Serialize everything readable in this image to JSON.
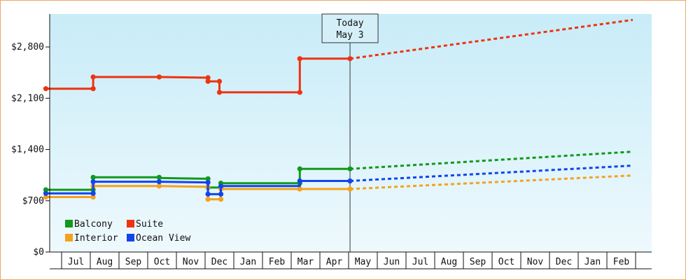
{
  "chart_data": {
    "type": "line",
    "ylim": [
      0,
      3250
    ],
    "y_ticks": [
      {
        "value": 0,
        "label": "$0"
      },
      {
        "value": 700,
        "label": "$700"
      },
      {
        "value": 1400,
        "label": "$1,400"
      },
      {
        "value": 2100,
        "label": "$2,100"
      },
      {
        "value": 2800,
        "label": "$2,800"
      }
    ],
    "x_month_labels": [
      "Jul",
      "Aug",
      "Sep",
      "Oct",
      "Nov",
      "Dec",
      "Jan",
      "Feb",
      "Mar",
      "Apr",
      "May",
      "Jun",
      "Jul",
      "Aug",
      "Sep",
      "Oct",
      "Nov",
      "Dec",
      "Jan",
      "Feb"
    ],
    "today": {
      "line1": "Today",
      "line2": "May 3",
      "month_index": 10.05
    },
    "legend": {
      "placement": "bottom-left",
      "columns": 2
    },
    "grid": false,
    "series": [
      {
        "name": "Balcony",
        "color": "#11991a",
        "history": [
          [
            -0.55,
            850
          ],
          [
            1.1,
            850
          ],
          [
            1.1,
            1020
          ],
          [
            3.4,
            1020
          ],
          [
            3.4,
            1010
          ],
          [
            5.1,
            1000
          ],
          [
            5.1,
            880
          ],
          [
            5.55,
            880
          ],
          [
            5.55,
            940
          ],
          [
            8.3,
            940
          ],
          [
            8.3,
            1135
          ],
          [
            10.05,
            1135
          ]
        ],
        "markers": [
          [
            -0.55,
            850
          ],
          [
            1.1,
            850
          ],
          [
            1.1,
            1020
          ],
          [
            3.4,
            1020
          ],
          [
            5.1,
            1000
          ],
          [
            5.1,
            880
          ],
          [
            5.55,
            880
          ],
          [
            5.55,
            940
          ],
          [
            8.3,
            940
          ],
          [
            8.3,
            1135
          ],
          [
            10.05,
            1135
          ]
        ],
        "forecast": [
          [
            10.05,
            1135
          ],
          [
            19.9,
            1370
          ]
        ]
      },
      {
        "name": "Suite",
        "color": "#ee3311",
        "history": [
          [
            -0.55,
            2230
          ],
          [
            1.1,
            2230
          ],
          [
            1.1,
            2390
          ],
          [
            3.4,
            2390
          ],
          [
            5.1,
            2380
          ],
          [
            5.1,
            2330
          ],
          [
            5.5,
            2330
          ],
          [
            5.5,
            2180
          ],
          [
            8.3,
            2180
          ],
          [
            8.3,
            2640
          ],
          [
            10.05,
            2640
          ]
        ],
        "markers": [
          [
            -0.55,
            2230
          ],
          [
            1.1,
            2230
          ],
          [
            1.1,
            2390
          ],
          [
            3.4,
            2390
          ],
          [
            5.1,
            2380
          ],
          [
            5.1,
            2330
          ],
          [
            5.5,
            2330
          ],
          [
            5.5,
            2180
          ],
          [
            8.3,
            2180
          ],
          [
            8.3,
            2640
          ],
          [
            10.05,
            2640
          ]
        ],
        "forecast": [
          [
            10.05,
            2640
          ],
          [
            19.9,
            3170
          ]
        ]
      },
      {
        "name": "Interior",
        "color": "#f4a21c",
        "history": [
          [
            -0.55,
            750
          ],
          [
            1.1,
            750
          ],
          [
            1.1,
            900
          ],
          [
            3.4,
            900
          ],
          [
            5.1,
            890
          ],
          [
            5.1,
            720
          ],
          [
            5.55,
            720
          ],
          [
            5.55,
            860
          ],
          [
            8.3,
            860
          ],
          [
            10.05,
            860
          ]
        ],
        "markers": [
          [
            -0.55,
            750
          ],
          [
            1.1,
            750
          ],
          [
            1.1,
            900
          ],
          [
            3.4,
            900
          ],
          [
            5.1,
            890
          ],
          [
            5.1,
            720
          ],
          [
            5.55,
            720
          ],
          [
            5.55,
            860
          ],
          [
            8.3,
            860
          ],
          [
            10.05,
            860
          ]
        ],
        "forecast": [
          [
            10.05,
            860
          ],
          [
            19.9,
            1045
          ]
        ]
      },
      {
        "name": "Ocean View",
        "color": "#1144ee",
        "history": [
          [
            -0.55,
            800
          ],
          [
            1.1,
            800
          ],
          [
            1.1,
            960
          ],
          [
            3.4,
            960
          ],
          [
            5.1,
            950
          ],
          [
            5.1,
            790
          ],
          [
            5.55,
            790
          ],
          [
            5.55,
            900
          ],
          [
            8.3,
            900
          ],
          [
            8.3,
            970
          ],
          [
            10.05,
            970
          ]
        ],
        "markers": [
          [
            -0.55,
            800
          ],
          [
            1.1,
            800
          ],
          [
            1.1,
            960
          ],
          [
            3.4,
            960
          ],
          [
            5.1,
            950
          ],
          [
            5.1,
            790
          ],
          [
            5.55,
            790
          ],
          [
            5.55,
            900
          ],
          [
            8.3,
            970
          ],
          [
            10.05,
            970
          ]
        ],
        "forecast": [
          [
            10.05,
            970
          ],
          [
            19.9,
            1180
          ]
        ]
      }
    ]
  }
}
